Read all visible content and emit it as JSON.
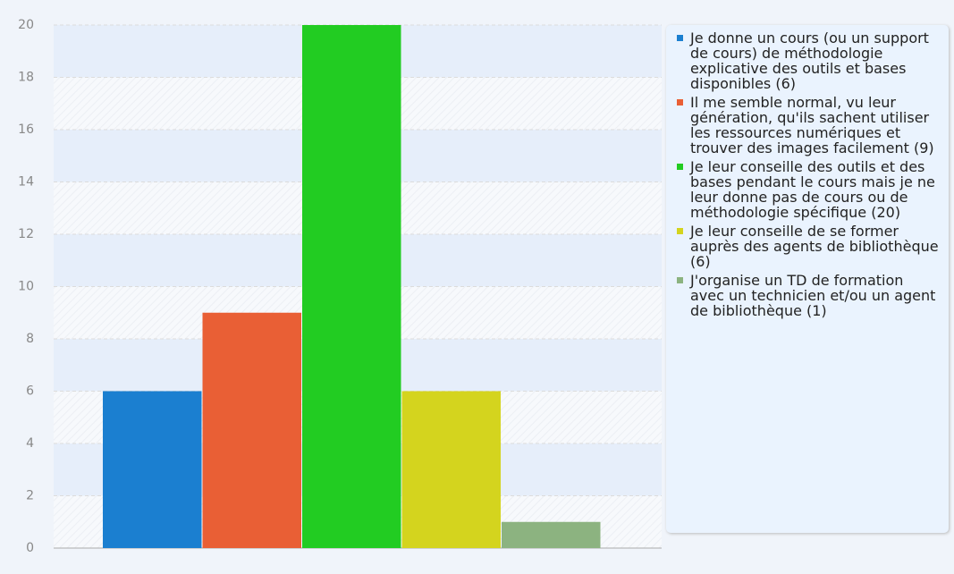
{
  "chart_data": {
    "type": "bar",
    "series": [
      {
        "name": "Je donne un cours (ou un support de cours) de méthodologie explicative des outils et bases disponibles (6)",
        "color": "#1b7fd0",
        "values": [
          6
        ]
      },
      {
        "name": "Il me semble normal, vu leur génération, qu'ils sachent utiliser les ressources numériques et trouver des images facilement (9)",
        "color": "#e95f35",
        "values": [
          9
        ]
      },
      {
        "name": "Je leur conseille des outils et des bases pendant le cours mais je ne leur donne pas de cours ou de méthodologie spécifique (20)",
        "color": "#22cc22",
        "values": [
          20
        ]
      },
      {
        "name": "Je leur conseille de se former auprès des agents de bibliothèque (6)",
        "color": "#d4d41e",
        "values": [
          6
        ]
      },
      {
        "name": "J'organise un TD de formation avec un technicien et/ou un agent de bibliothèque (1)",
        "color": "#8cb380",
        "values": [
          1
        ]
      }
    ],
    "ylim": [
      0,
      20
    ],
    "yticks": [
      0,
      2,
      4,
      6,
      8,
      10,
      12,
      14,
      16,
      18,
      20
    ],
    "grid": true,
    "legend": "right"
  }
}
